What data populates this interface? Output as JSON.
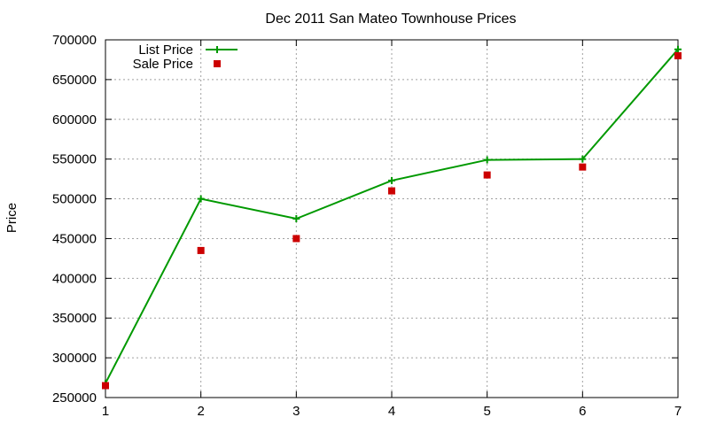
{
  "chart_data": {
    "type": "line",
    "title": "Dec 2011 San Mateo Townhouse Prices",
    "xlabel": "",
    "ylabel": "Price",
    "x": [
      1,
      2,
      3,
      4,
      5,
      6,
      7
    ],
    "xlim": [
      1,
      7
    ],
    "ylim": [
      250000,
      700000
    ],
    "xticks": [
      "1",
      "2",
      "3",
      "4",
      "5",
      "6",
      "7"
    ],
    "yticks": [
      "250000",
      "300000",
      "350000",
      "400000",
      "450000",
      "500000",
      "550000",
      "600000",
      "650000",
      "700000"
    ],
    "grid": true,
    "legend_position": "top-left",
    "series": [
      {
        "name": "List Price",
        "style": "line-with-plus-markers",
        "color": "#009900",
        "values": [
          268000,
          500000,
          475000,
          523000,
          549000,
          550000,
          688000
        ]
      },
      {
        "name": "Sale Price",
        "style": "square-markers",
        "color": "#cc0000",
        "values": [
          265000,
          435000,
          450000,
          510000,
          530000,
          540000,
          680000
        ]
      }
    ]
  }
}
